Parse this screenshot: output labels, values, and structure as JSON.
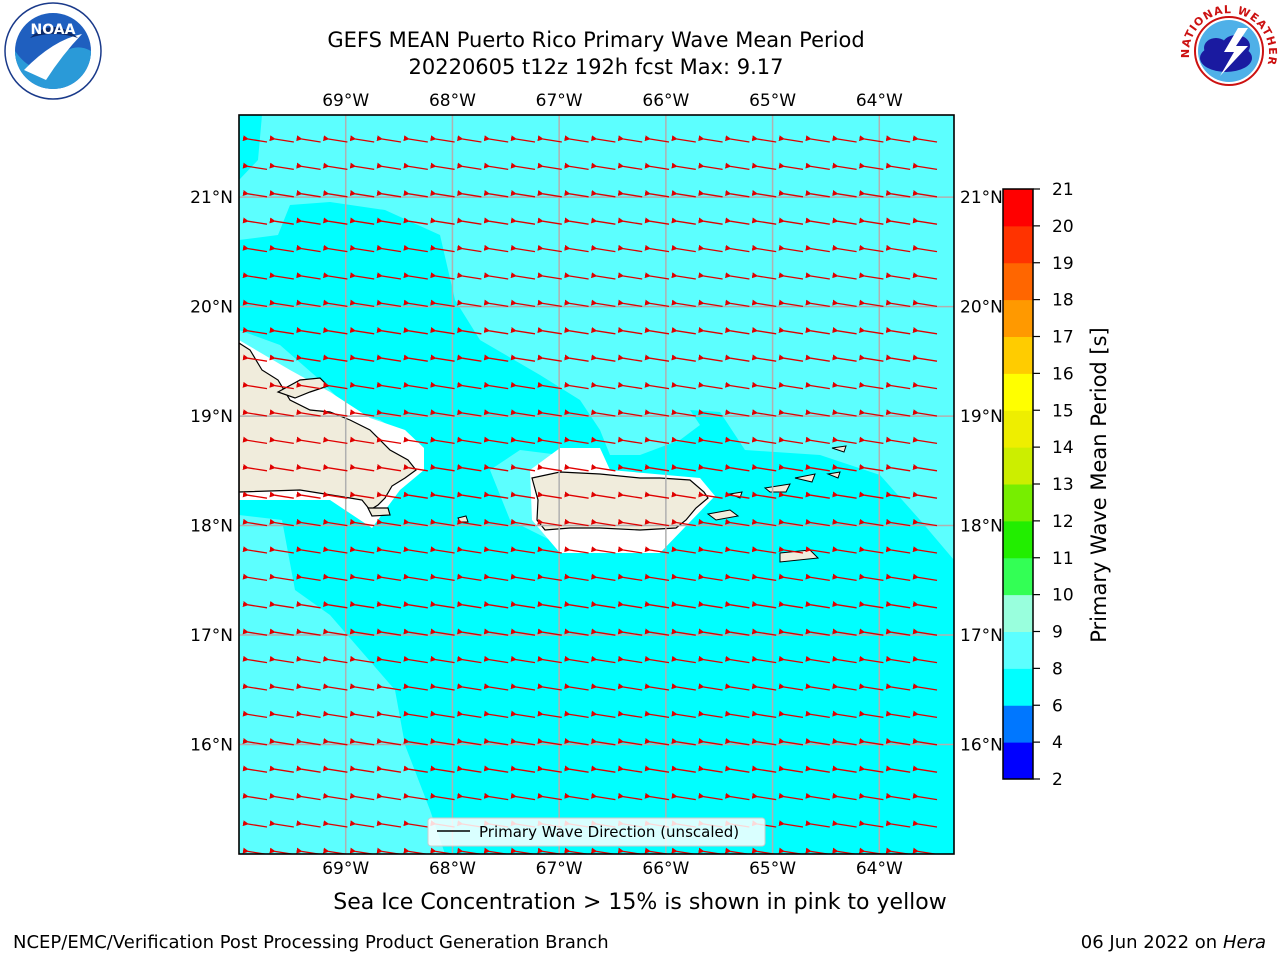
{
  "title_line1": "GEFS MEAN Puerto Rico Primary Wave Mean Period",
  "title_line2": "20220605 t12z 192h fcst   Max: 9.17",
  "subtitle": "Sea Ice Concentration > 15% is shown in pink to yellow",
  "footer_left": "NCEP/EMC/Verification Post Processing Product Generation Branch",
  "footer_right_date": "06 Jun 2022 on",
  "footer_right_host": "Hera",
  "legend_label": "Primary Wave Direction (unscaled)",
  "colorbar_label": "Primary Wave Mean Period [s]",
  "logos": {
    "noaa_text": "NOAA",
    "nws_text": "NATIONAL WEATHER SERVICE"
  },
  "map": {
    "lon_ticks": [
      "69°W",
      "68°W",
      "67°W",
      "66°W",
      "65°W",
      "64°W"
    ],
    "lon_values": [
      -69,
      -68,
      -67,
      -66,
      -65,
      -64
    ],
    "lat_ticks": [
      "21°N",
      "20°N",
      "19°N",
      "18°N",
      "17°N",
      "16°N"
    ],
    "lat_values": [
      21,
      20,
      19,
      18,
      17,
      16
    ],
    "lon_range": [
      -70,
      -63.3
    ],
    "lat_range": [
      15.0,
      21.75
    ],
    "arrow_color": "#e00000",
    "ocean_colors": {
      "period_6_8": "#00ffff",
      "period_8_9": "#5cffff",
      "land": "#f0ecdc"
    }
  },
  "colorbar": {
    "levels": [
      2,
      4,
      6,
      8,
      9,
      10,
      11,
      12,
      13,
      14,
      15,
      16,
      17,
      18,
      19,
      20,
      21
    ],
    "colors": [
      "#0000ff",
      "#0077ff",
      "#00ffff",
      "#5cffff",
      "#99ffdd",
      "#33ff55",
      "#22ee00",
      "#77ee00",
      "#ccee00",
      "#eeee00",
      "#ffff00",
      "#ffcc00",
      "#ff9900",
      "#ff6600",
      "#ff3300",
      "#ff0000"
    ]
  }
}
